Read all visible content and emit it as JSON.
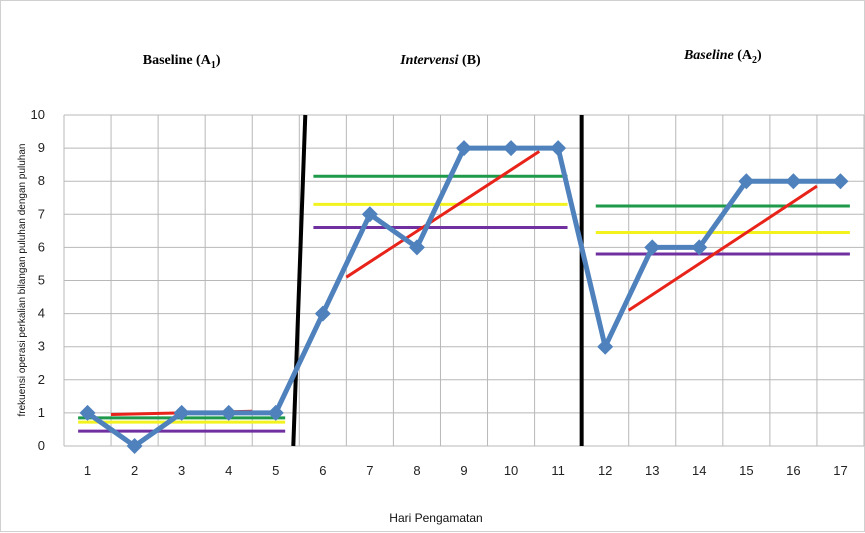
{
  "chart_data": {
    "type": "line",
    "xlabel": "Hari Pengamatan",
    "ylabel": "frekuensi operasi perkalian bilangan puluhan dengan puluhan",
    "ylim": [
      0,
      10
    ],
    "x": [
      1,
      2,
      3,
      4,
      5,
      6,
      7,
      8,
      9,
      10,
      11,
      12,
      13,
      14,
      15,
      16,
      17
    ],
    "y_ticks": [
      0,
      1,
      2,
      3,
      4,
      5,
      6,
      7,
      8,
      9,
      10
    ],
    "grid": true,
    "phases": [
      {
        "title_main": "Baseline (A",
        "title_sub": "1",
        "title_end": ")",
        "italic": false,
        "x": [
          1,
          2,
          3,
          4,
          5
        ],
        "y": [
          1,
          0,
          1,
          1,
          1
        ],
        "levels": {
          "green": 0.85,
          "yellow": 0.72,
          "purple": 0.45
        },
        "trend": [
          [
            1.5,
            0.95
          ],
          [
            4.5,
            1.05
          ]
        ]
      },
      {
        "title_main": "Intervensi",
        "title_sub": "",
        "title_end": " (B)",
        "italic": true,
        "x": [
          6,
          7,
          8,
          9,
          10,
          11
        ],
        "y": [
          4,
          7,
          6,
          9,
          9,
          9
        ],
        "levels": {
          "green": 8.15,
          "yellow": 7.3,
          "purple": 6.6
        },
        "trend": [
          [
            6.5,
            5.1
          ],
          [
            10.6,
            8.9
          ]
        ]
      },
      {
        "title_main": "Baseline",
        "title_sub": "2",
        "title_end": ")",
        "italic": true,
        "x": [
          12,
          13,
          14,
          15,
          16,
          17
        ],
        "y": [
          3,
          6,
          6,
          8,
          8,
          8
        ],
        "levels": {
          "green": 7.25,
          "yellow": 6.45,
          "purple": 5.8
        },
        "trend": [
          [
            12.5,
            4.1
          ],
          [
            16.5,
            7.85
          ]
        ]
      }
    ],
    "dividers": [
      5.5,
      11.5
    ],
    "colors": {
      "series": "#4F81BD",
      "trend": "#E8231A",
      "green": "#1E9A4A",
      "yellow": "#F2F21E",
      "purple": "#7030A0",
      "divider": "#000000",
      "grid": "#b8b8b8"
    }
  }
}
